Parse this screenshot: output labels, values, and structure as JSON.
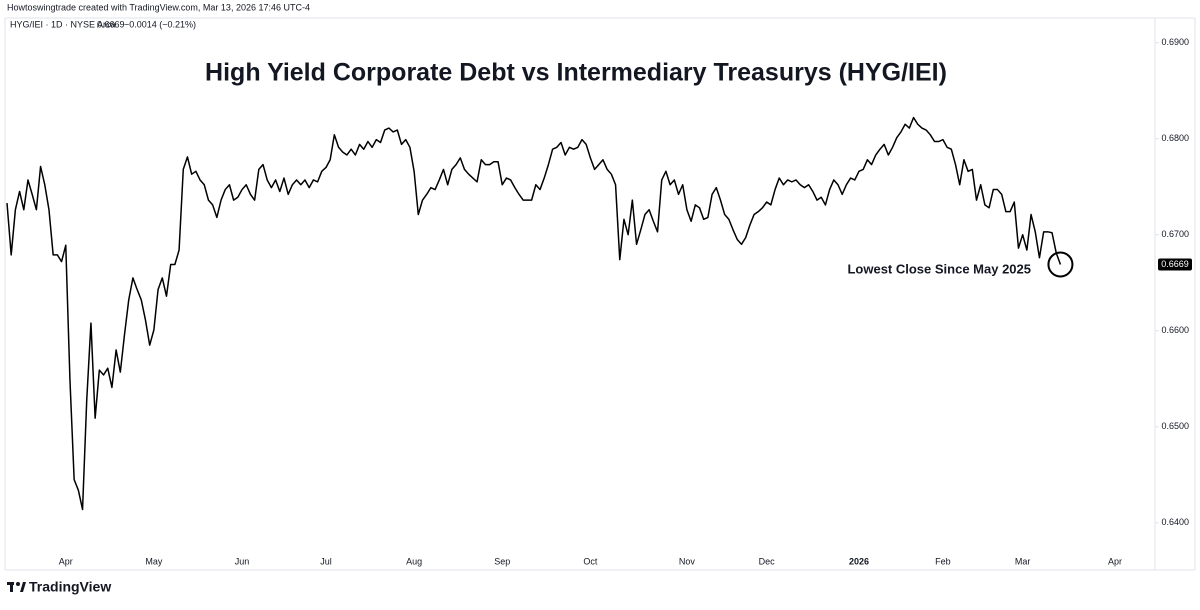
{
  "chart_data": {
    "type": "line",
    "header": "Howtoswingtrade created with TradingView.com, Mar 13, 2026 17:46 UTC-4",
    "title": "High Yield Corporate Debt vs Intermediary Treasurys (HYG/IEI)",
    "annotation": "Lowest Close Since May 2025",
    "legend": {
      "price": "0.6669",
      "change": "−0.0014 (−0.21%)"
    },
    "branding": "TradingView",
    "categories": [
      null,
      null,
      null,
      null,
      null,
      null,
      null,
      null,
      null,
      null,
      null,
      null,
      null,
      null,
      "Apr",
      null,
      null,
      null,
      null,
      null,
      null,
      null,
      null,
      null,
      null,
      null,
      null,
      null,
      null,
      null,
      null,
      null,
      null,
      null,
      null,
      "May",
      null,
      null,
      null,
      null,
      null,
      null,
      null,
      null,
      null,
      null,
      null,
      null,
      null,
      null,
      null,
      null,
      null,
      null,
      null,
      null,
      "Jun",
      null,
      null,
      null,
      null,
      null,
      null,
      null,
      null,
      null,
      null,
      null,
      null,
      null,
      null,
      null,
      null,
      null,
      null,
      null,
      "Jul",
      null,
      null,
      null,
      null,
      null,
      null,
      null,
      null,
      null,
      null,
      null,
      null,
      null,
      null,
      null,
      null,
      null,
      null,
      null,
      null,
      "Aug",
      null,
      null,
      null,
      null,
      null,
      null,
      null,
      null,
      null,
      null,
      null,
      null,
      null,
      null,
      null,
      null,
      null,
      null,
      null,
      null,
      "Sep",
      null,
      null,
      null,
      null,
      null,
      null,
      null,
      null,
      null,
      null,
      null,
      null,
      null,
      null,
      null,
      null,
      null,
      null,
      null,
      null,
      "Oct",
      null,
      null,
      null,
      null,
      null,
      null,
      null,
      null,
      null,
      null,
      null,
      null,
      null,
      null,
      null,
      null,
      null,
      null,
      null,
      null,
      null,
      null,
      "Nov",
      null,
      null,
      null,
      null,
      null,
      null,
      null,
      null,
      null,
      null,
      null,
      null,
      null,
      null,
      null,
      null,
      null,
      null,
      "Dec",
      null,
      null,
      null,
      null,
      null,
      null,
      null,
      null,
      null,
      null,
      null,
      null,
      null,
      null,
      null,
      null,
      null,
      null,
      null,
      null,
      null,
      "2026",
      null,
      null,
      null,
      null,
      null,
      null,
      null,
      null,
      null,
      null,
      null,
      null,
      null,
      null,
      null,
      null,
      null,
      null,
      null,
      "Feb",
      null,
      null,
      null,
      null,
      null,
      null,
      null,
      null,
      null,
      null,
      null,
      null,
      null,
      null,
      null,
      null,
      null,
      null,
      "Mar",
      null,
      null,
      null,
      null,
      null,
      null,
      null,
      null,
      null,
      null,
      null,
      null,
      null,
      null,
      null,
      null,
      null,
      null,
      null,
      null,
      null,
      "Apr"
    ],
    "series": [
      {
        "name": "HYG/IEI · 1D · NYSE Arca",
        "color": "#000000",
        "values": [
          0.6733,
          0.6679,
          0.6726,
          0.6745,
          0.6726,
          0.6757,
          0.6742,
          0.6726,
          0.6771,
          0.6752,
          0.6726,
          0.6679,
          0.6679,
          0.6672,
          0.6689,
          0.6549,
          0.6445,
          0.6434,
          0.6414,
          0.6528,
          0.6608,
          0.6509,
          0.6559,
          0.6554,
          0.6561,
          0.6541,
          0.658,
          0.6557,
          0.6596,
          0.6632,
          0.6655,
          0.6643,
          0.6632,
          0.6611,
          0.6585,
          0.6601,
          0.6643,
          0.6655,
          0.6636,
          0.6669,
          0.6669,
          0.6684,
          0.6768,
          0.6781,
          0.6763,
          0.6766,
          0.6757,
          0.6752,
          0.6736,
          0.6731,
          0.6718,
          0.6736,
          0.6747,
          0.6752,
          0.6736,
          0.6739,
          0.6747,
          0.6752,
          0.6742,
          0.6736,
          0.6768,
          0.6773,
          0.6757,
          0.6749,
          0.6757,
          0.6745,
          0.6759,
          0.6742,
          0.6752,
          0.6757,
          0.6752,
          0.6757,
          0.6749,
          0.6757,
          0.6755,
          0.6766,
          0.677,
          0.6778,
          0.6804,
          0.6791,
          0.6786,
          0.6783,
          0.6789,
          0.6783,
          0.6794,
          0.6789,
          0.6797,
          0.6791,
          0.6799,
          0.6796,
          0.6809,
          0.6811,
          0.6807,
          0.6809,
          0.6794,
          0.6799,
          0.6791,
          0.6766,
          0.6721,
          0.6736,
          0.6742,
          0.6749,
          0.6747,
          0.6757,
          0.6768,
          0.6752,
          0.6768,
          0.6773,
          0.678,
          0.6768,
          0.6763,
          0.6759,
          0.6755,
          0.6778,
          0.6773,
          0.6773,
          0.6776,
          0.6776,
          0.6752,
          0.6759,
          0.6757,
          0.6749,
          0.6742,
          0.6736,
          0.6736,
          0.6736,
          0.6752,
          0.6747,
          0.6759,
          0.6773,
          0.6789,
          0.6791,
          0.6796,
          0.6783,
          0.6791,
          0.6789,
          0.6791,
          0.6799,
          0.6794,
          0.678,
          0.6768,
          0.6773,
          0.6778,
          0.6768,
          0.6763,
          0.6752,
          0.6674,
          0.6716,
          0.67,
          0.6736,
          0.669,
          0.6705,
          0.6721,
          0.6726,
          0.6714,
          0.6703,
          0.6757,
          0.6766,
          0.6752,
          0.6757,
          0.6742,
          0.6752,
          0.6726,
          0.6714,
          0.6731,
          0.6728,
          0.6716,
          0.6718,
          0.6742,
          0.6749,
          0.6736,
          0.6721,
          0.6716,
          0.6705,
          0.6695,
          0.669,
          0.6697,
          0.671,
          0.6721,
          0.6724,
          0.6728,
          0.6734,
          0.6731,
          0.6747,
          0.6759,
          0.6752,
          0.6757,
          0.6755,
          0.6757,
          0.6752,
          0.6749,
          0.6752,
          0.6745,
          0.6736,
          0.6739,
          0.6731,
          0.6747,
          0.6757,
          0.6752,
          0.6742,
          0.6752,
          0.6759,
          0.6757,
          0.6766,
          0.6768,
          0.6778,
          0.6773,
          0.6783,
          0.6789,
          0.6794,
          0.6783,
          0.6791,
          0.6801,
          0.6807,
          0.6815,
          0.6811,
          0.6822,
          0.6815,
          0.6811,
          0.6809,
          0.6804,
          0.6797,
          0.6797,
          0.6799,
          0.6791,
          0.6789,
          0.6773,
          0.6752,
          0.6778,
          0.6766,
          0.6768,
          0.6736,
          0.6752,
          0.6731,
          0.6728,
          0.6747,
          0.6747,
          0.6742,
          0.6724,
          0.6724,
          0.6734,
          0.6686,
          0.67,
          0.6684,
          0.6721,
          0.6703,
          0.6676,
          0.6703,
          0.6703,
          0.6702,
          0.6681,
          0.6669,
          null,
          null,
          null,
          null,
          null,
          null,
          null,
          null,
          null,
          null,
          null,
          null,
          null
        ]
      }
    ],
    "ylim": [
      0.6353,
      0.691
    ],
    "yticks": [
      {
        "value": 0.64,
        "label": "0.6400"
      },
      {
        "value": 0.65,
        "label": "0.6500"
      },
      {
        "value": 0.66,
        "label": "0.6600"
      },
      {
        "value": 0.67,
        "label": "0.6700"
      },
      {
        "value": 0.68,
        "label": "0.6800"
      },
      {
        "value": 0.69,
        "label": "0.6900"
      }
    ],
    "grid": false
  }
}
